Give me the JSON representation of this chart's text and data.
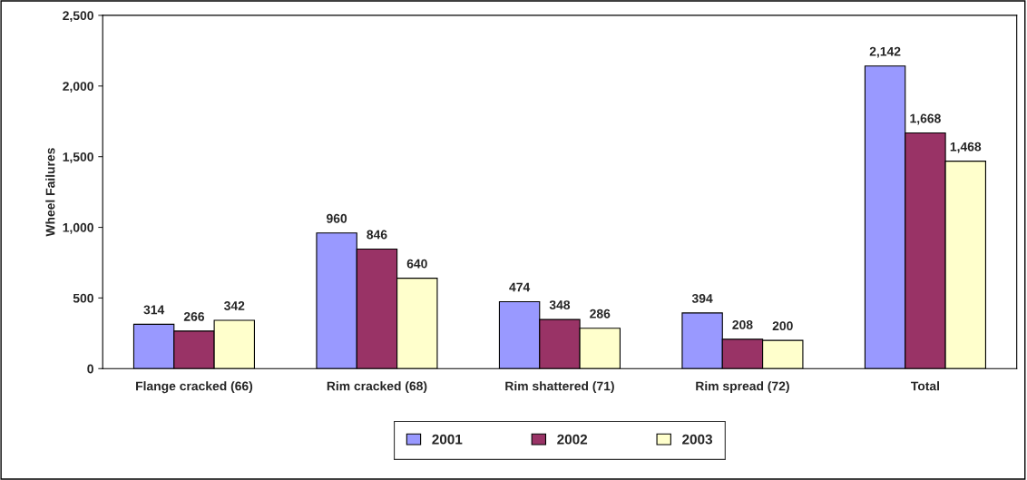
{
  "chart_data": {
    "type": "bar",
    "ylabel": "Wheel Failures",
    "categories": [
      "Flange cracked (66)",
      "Rim cracked (68)",
      "Rim shattered (71)",
      "Rim spread (72)",
      "Total"
    ],
    "series": [
      {
        "name": "2001",
        "color": "#9999ff",
        "values": [
          314,
          960,
          474,
          394,
          2142
        ],
        "value_labels": [
          "314",
          "960",
          "474",
          "394",
          "2,142"
        ]
      },
      {
        "name": "2002",
        "color": "#993366",
        "values": [
          266,
          846,
          348,
          208,
          1668
        ],
        "value_labels": [
          "266",
          "846",
          "348",
          "208",
          "1,668"
        ]
      },
      {
        "name": "2003",
        "color": "#ffffcc",
        "values": [
          342,
          640,
          286,
          200,
          1468
        ],
        "value_labels": [
          "342",
          "640",
          "286",
          "200",
          "1,468"
        ]
      }
    ],
    "ylim": [
      0,
      2500
    ],
    "yticks": [
      0,
      500,
      {
        "value": 1000,
        "label": "1,000"
      },
      {
        "value": 1500,
        "label": "1,500"
      },
      {
        "value": 2000,
        "label": "2,000"
      },
      {
        "value": 2500,
        "label": "2,500"
      }
    ],
    "grid": false,
    "legend": "bottom"
  }
}
